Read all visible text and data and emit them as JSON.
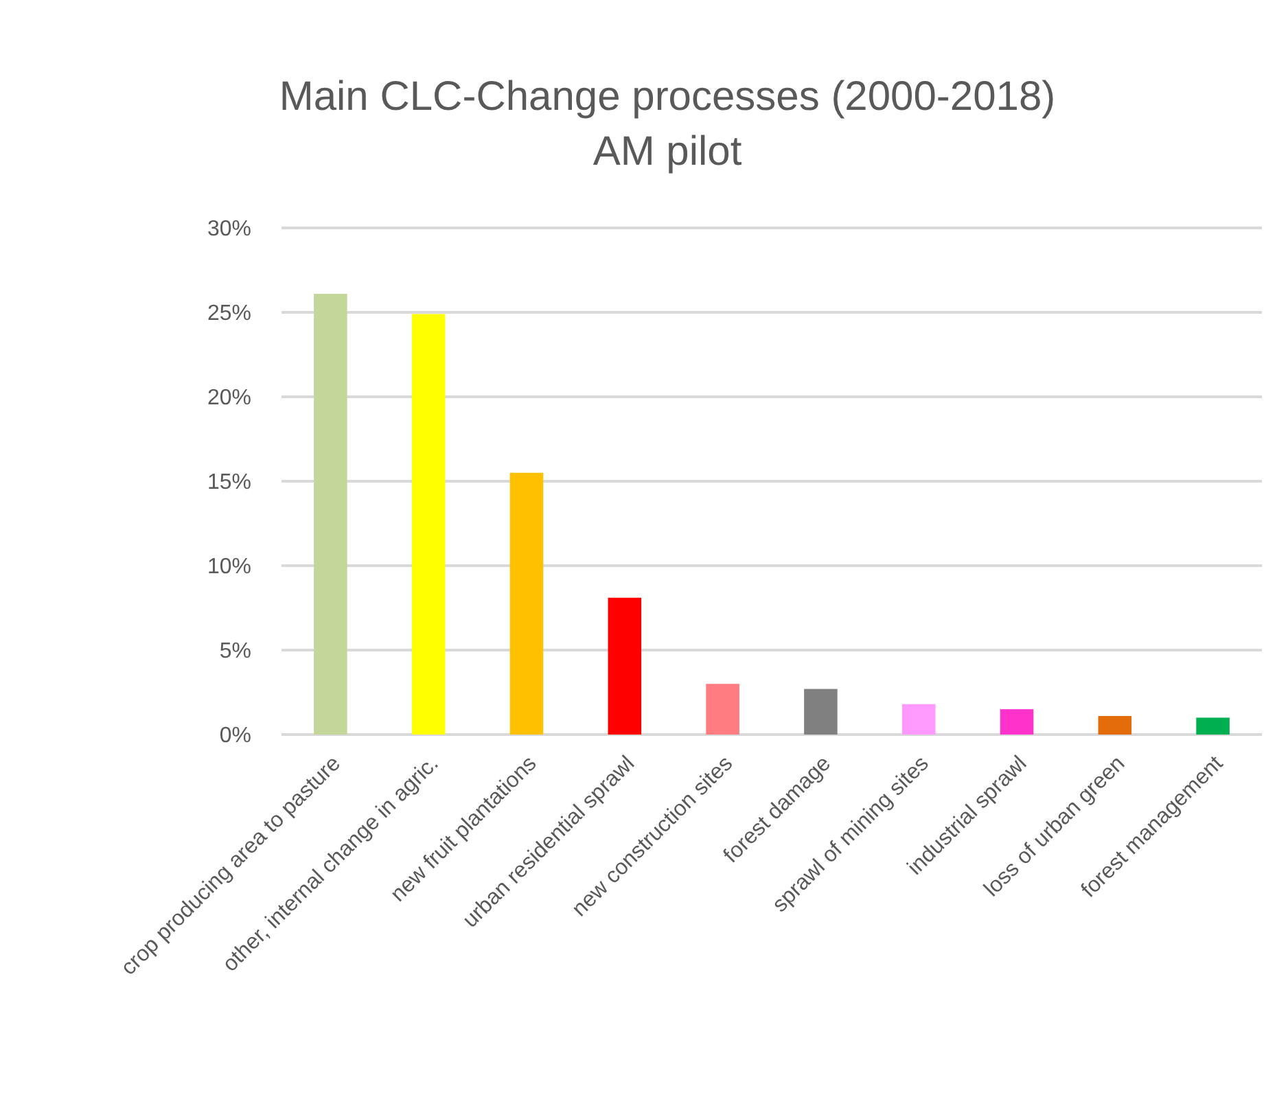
{
  "chart_data": {
    "type": "bar",
    "title": "Main CLC-Change processes (2000-2018)",
    "subtitle": "AM pilot",
    "categories": [
      "crop producing area to pasture",
      "other, internal change in agric.",
      "new fruit plantations",
      "urban residential sprawl",
      "new construction sites",
      "forest damage",
      "sprawl of mining sites",
      "industrial sprawl",
      "loss of urban green",
      "forest management"
    ],
    "values": [
      26.1,
      24.9,
      15.5,
      8.1,
      3.0,
      2.7,
      1.8,
      1.5,
      1.1,
      1.0
    ],
    "colors": [
      "#c4d79b",
      "#ffff00",
      "#ffc000",
      "#ff0000",
      "#ff7c80",
      "#808080",
      "#ff99ff",
      "#ff33cc",
      "#e26b0a",
      "#00b050"
    ],
    "ylim": [
      0,
      30
    ],
    "yticks": [
      {
        "value": 0,
        "label": "0%"
      },
      {
        "value": 5,
        "label": "5%"
      },
      {
        "value": 10,
        "label": "10%"
      },
      {
        "value": 15,
        "label": "15%"
      },
      {
        "value": 20,
        "label": "20%"
      },
      {
        "value": 25,
        "label": "25%"
      },
      {
        "value": 30,
        "label": "30%"
      }
    ],
    "grid": "y"
  }
}
